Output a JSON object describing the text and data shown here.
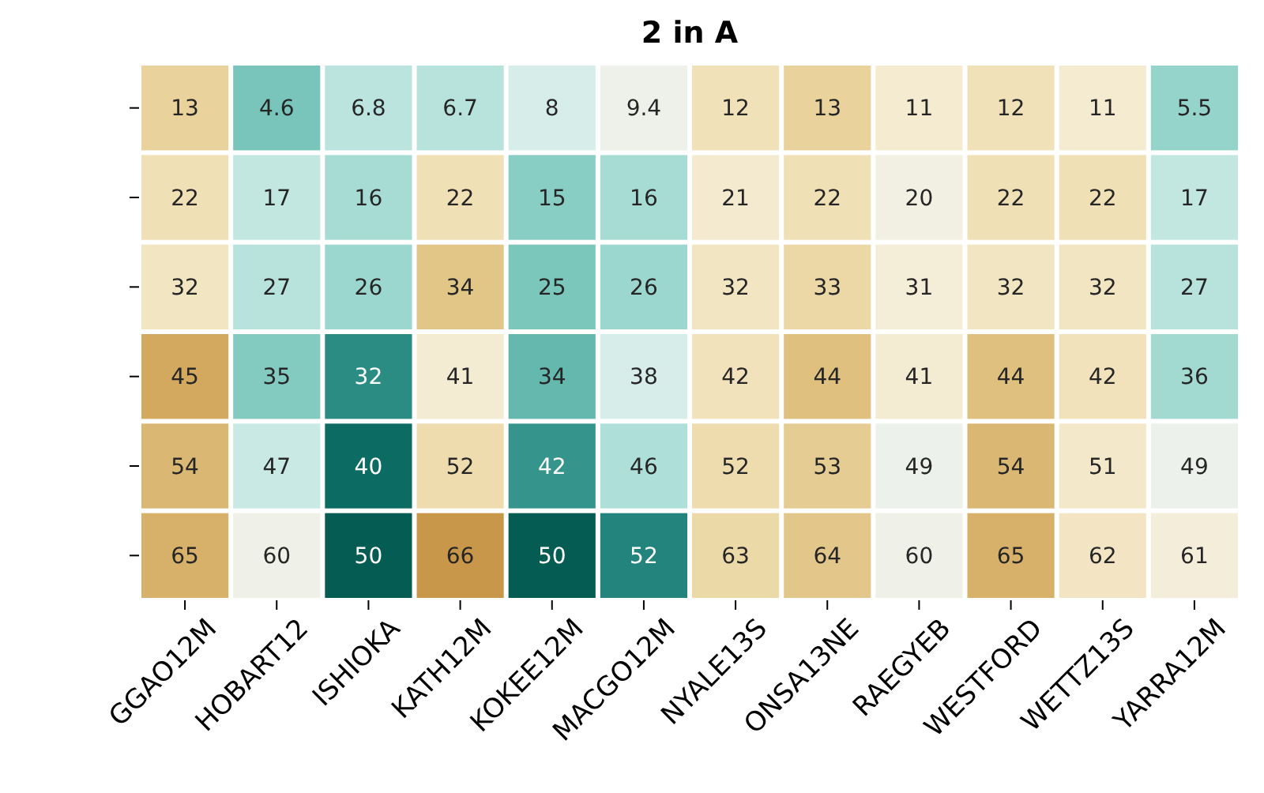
{
  "chart_data": {
    "type": "heatmap",
    "title": "2 in A",
    "categories": [
      "GGAO12M",
      "HOBART12",
      "ISHIOKA",
      "KATH12M",
      "KOKEE12M",
      "MACGO12M",
      "NYALE13S",
      "ONSA13NE",
      "RAEGYEB",
      "WESTFORD",
      "WETTZ13S",
      "YARRA12M"
    ],
    "y_categories": [
      null,
      null,
      null,
      null,
      null,
      null
    ],
    "data_labels": true,
    "cells": [
      [
        13,
        4.6,
        6.8,
        6.7,
        8,
        9.4,
        12,
        13,
        11,
        12,
        11,
        5.5
      ],
      [
        22,
        17,
        16,
        22,
        15,
        16,
        21,
        22,
        20,
        22,
        22,
        17
      ],
      [
        32,
        27,
        26,
        34,
        25,
        26,
        32,
        33,
        31,
        32,
        32,
        27
      ],
      [
        45,
        35,
        32,
        41,
        34,
        38,
        42,
        44,
        41,
        44,
        42,
        36
      ],
      [
        54,
        47,
        40,
        52,
        42,
        46,
        52,
        53,
        49,
        54,
        51,
        49
      ],
      [
        65,
        60,
        50,
        66,
        50,
        52,
        63,
        64,
        60,
        65,
        62,
        61
      ]
    ]
  }
}
